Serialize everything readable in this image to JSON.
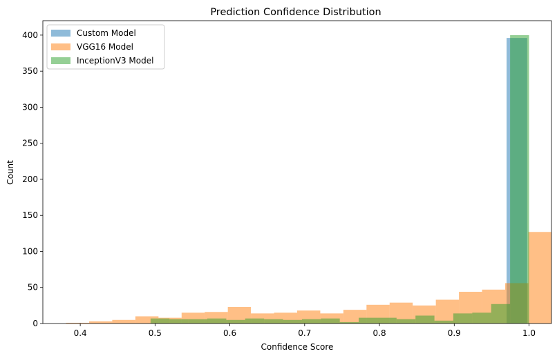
{
  "chart_data": {
    "type": "bar",
    "title": "Prediction Confidence Distribution",
    "xlabel": "Confidence Score",
    "ylabel": "Count",
    "xlim": [
      0.35,
      1.03
    ],
    "ylim": [
      0,
      420
    ],
    "xticks": [
      0.4,
      0.5,
      0.6,
      0.7,
      0.8,
      0.9,
      1.0
    ],
    "xtick_labels": [
      "0.4",
      "0.5",
      "0.6",
      "0.7",
      "0.8",
      "0.9",
      "1.0"
    ],
    "yticks": [
      0,
      50,
      100,
      150,
      200,
      250,
      300,
      350,
      400
    ],
    "ytick_labels": [
      "0",
      "50",
      "100",
      "150",
      "200",
      "250",
      "300",
      "350",
      "400"
    ],
    "grid": false,
    "legend": "top-left",
    "series": [
      {
        "name": "Custom Model",
        "color": "#1f77b4",
        "bin_start": 0.97,
        "bin_width": 0.0275,
        "counts": [
          396
        ]
      },
      {
        "name": "VGG16 Model",
        "color": "#ff7f0e",
        "bin_start": 0.381,
        "bin_width": 0.0309,
        "counts": [
          1,
          3,
          5,
          10,
          8,
          15,
          16,
          23,
          14,
          15,
          18,
          14,
          19,
          26,
          29,
          25,
          33,
          44,
          47,
          56,
          127
        ]
      },
      {
        "name": "InceptionV3 Model",
        "color": "#2ca02c",
        "bin_start": 0.494,
        "bin_width": 0.0253,
        "counts": [
          7,
          6,
          6,
          7,
          5,
          7,
          6,
          5,
          6,
          7,
          2,
          8,
          8,
          6,
          11,
          4,
          14,
          15,
          27,
          400
        ]
      }
    ]
  }
}
